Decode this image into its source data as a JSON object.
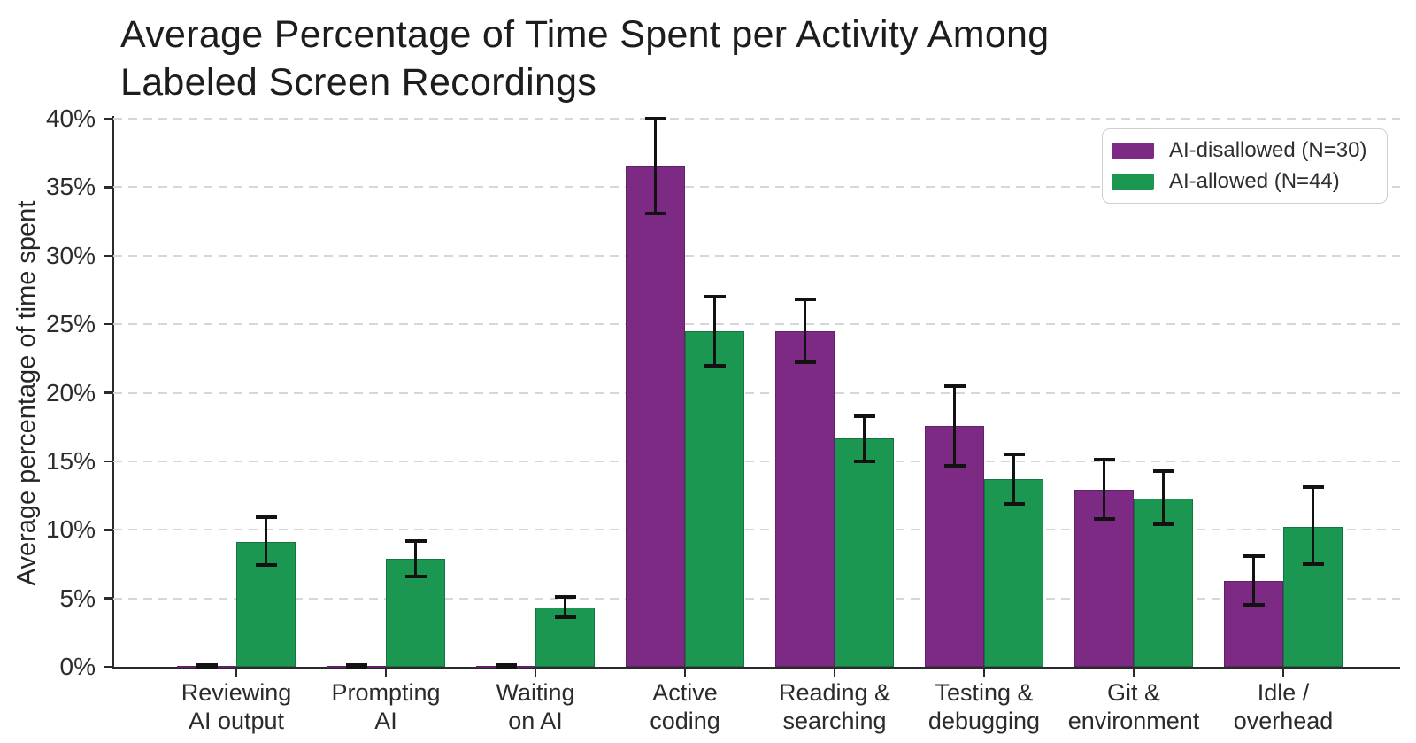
{
  "ui": {
    "title_lines": [
      "Average Percentage of Time Spent per Activity Among",
      "Labeled Screen Recordings"
    ]
  },
  "chart_data": {
    "type": "bar",
    "title": "Average Percentage of Time Spent per Activity Among Labeled Screen Recordings",
    "xlabel": "",
    "ylabel": "Average percentage of time spent",
    "ylim": [
      0,
      40
    ],
    "grid": "horizontal-dashed",
    "legend_position": "upper right",
    "error_bar_color": "#121212",
    "y_ticks": [
      {
        "value": 0,
        "label": "0%"
      },
      {
        "value": 5,
        "label": "5%"
      },
      {
        "value": 10,
        "label": "10%"
      },
      {
        "value": 15,
        "label": "15%"
      },
      {
        "value": 20,
        "label": "20%"
      },
      {
        "value": 25,
        "label": "25%"
      },
      {
        "value": 30,
        "label": "30%"
      },
      {
        "value": 35,
        "label": "35%"
      },
      {
        "value": 40,
        "label": "40%"
      }
    ],
    "categories": [
      "Reviewing AI output",
      "Prompting AI",
      "Waiting on AI",
      "Active coding",
      "Reading & searching",
      "Testing & debugging",
      "Git & environment",
      "Idle / overhead"
    ],
    "category_label_lines": [
      [
        "Reviewing",
        "AI output"
      ],
      [
        "Prompting",
        "AI"
      ],
      [
        "Waiting",
        "on AI"
      ],
      [
        "Active",
        "coding"
      ],
      [
        "Reading &",
        "searching"
      ],
      [
        "Testing &",
        "debugging"
      ],
      [
        "Git &",
        "environment"
      ],
      [
        "Idle /",
        "overhead"
      ]
    ],
    "series": [
      {
        "name": "AI-disallowed (N=30)",
        "color": "#7D2A85",
        "values": [
          0.05,
          0.05,
          0.05,
          36.5,
          24.5,
          17.6,
          12.9,
          6.3
        ],
        "err_low": [
          0.0,
          0.0,
          0.0,
          33.1,
          22.2,
          14.7,
          10.8,
          4.5
        ],
        "err_high": [
          0.1,
          0.1,
          0.1,
          40.0,
          26.8,
          20.5,
          15.1,
          8.1
        ]
      },
      {
        "name": "AI-allowed (N=44)",
        "color": "#1B9751",
        "values": [
          9.1,
          7.9,
          4.3,
          24.5,
          16.7,
          13.7,
          12.3,
          10.2
        ],
        "err_low": [
          7.4,
          6.6,
          3.6,
          22.0,
          15.0,
          11.9,
          10.4,
          7.5
        ],
        "err_high": [
          10.9,
          9.2,
          5.1,
          27.0,
          18.3,
          15.5,
          14.3,
          13.1
        ]
      }
    ]
  }
}
